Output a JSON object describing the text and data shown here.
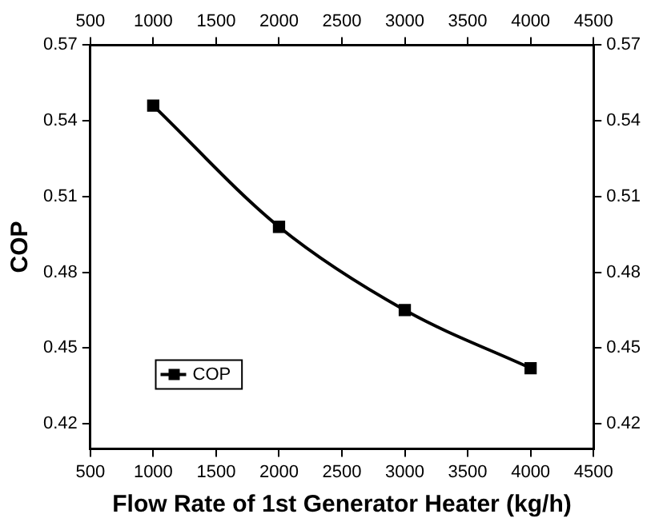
{
  "chart_data": {
    "type": "line",
    "xlabel": "Flow Rate of 1st Generator Heater (kg/h)",
    "ylabel": "COP",
    "x": [
      1000,
      2000,
      3000,
      4000
    ],
    "series": [
      {
        "name": "COP",
        "color": "#000000",
        "values": [
          0.546,
          0.498,
          0.465,
          0.442
        ]
      }
    ],
    "xlim": [
      500,
      4500
    ],
    "xticks": [
      500,
      1000,
      1500,
      2000,
      2500,
      3000,
      3500,
      4000,
      4500
    ],
    "x2lim": [
      500,
      4500
    ],
    "x2ticks": [
      500,
      1000,
      1500,
      2000,
      2500,
      3000,
      3500,
      4000,
      4500
    ],
    "ylim": [
      0.41,
      0.57
    ],
    "yticks": [
      0.42,
      0.45,
      0.48,
      0.51,
      0.54,
      0.57
    ],
    "y2lim": [
      0.41,
      0.57
    ],
    "y2ticks": [
      0.42,
      0.45,
      0.48,
      0.51,
      0.54,
      0.57
    ],
    "marker": "square",
    "line_style": "solid",
    "grid": false,
    "legend": "bottom left"
  }
}
